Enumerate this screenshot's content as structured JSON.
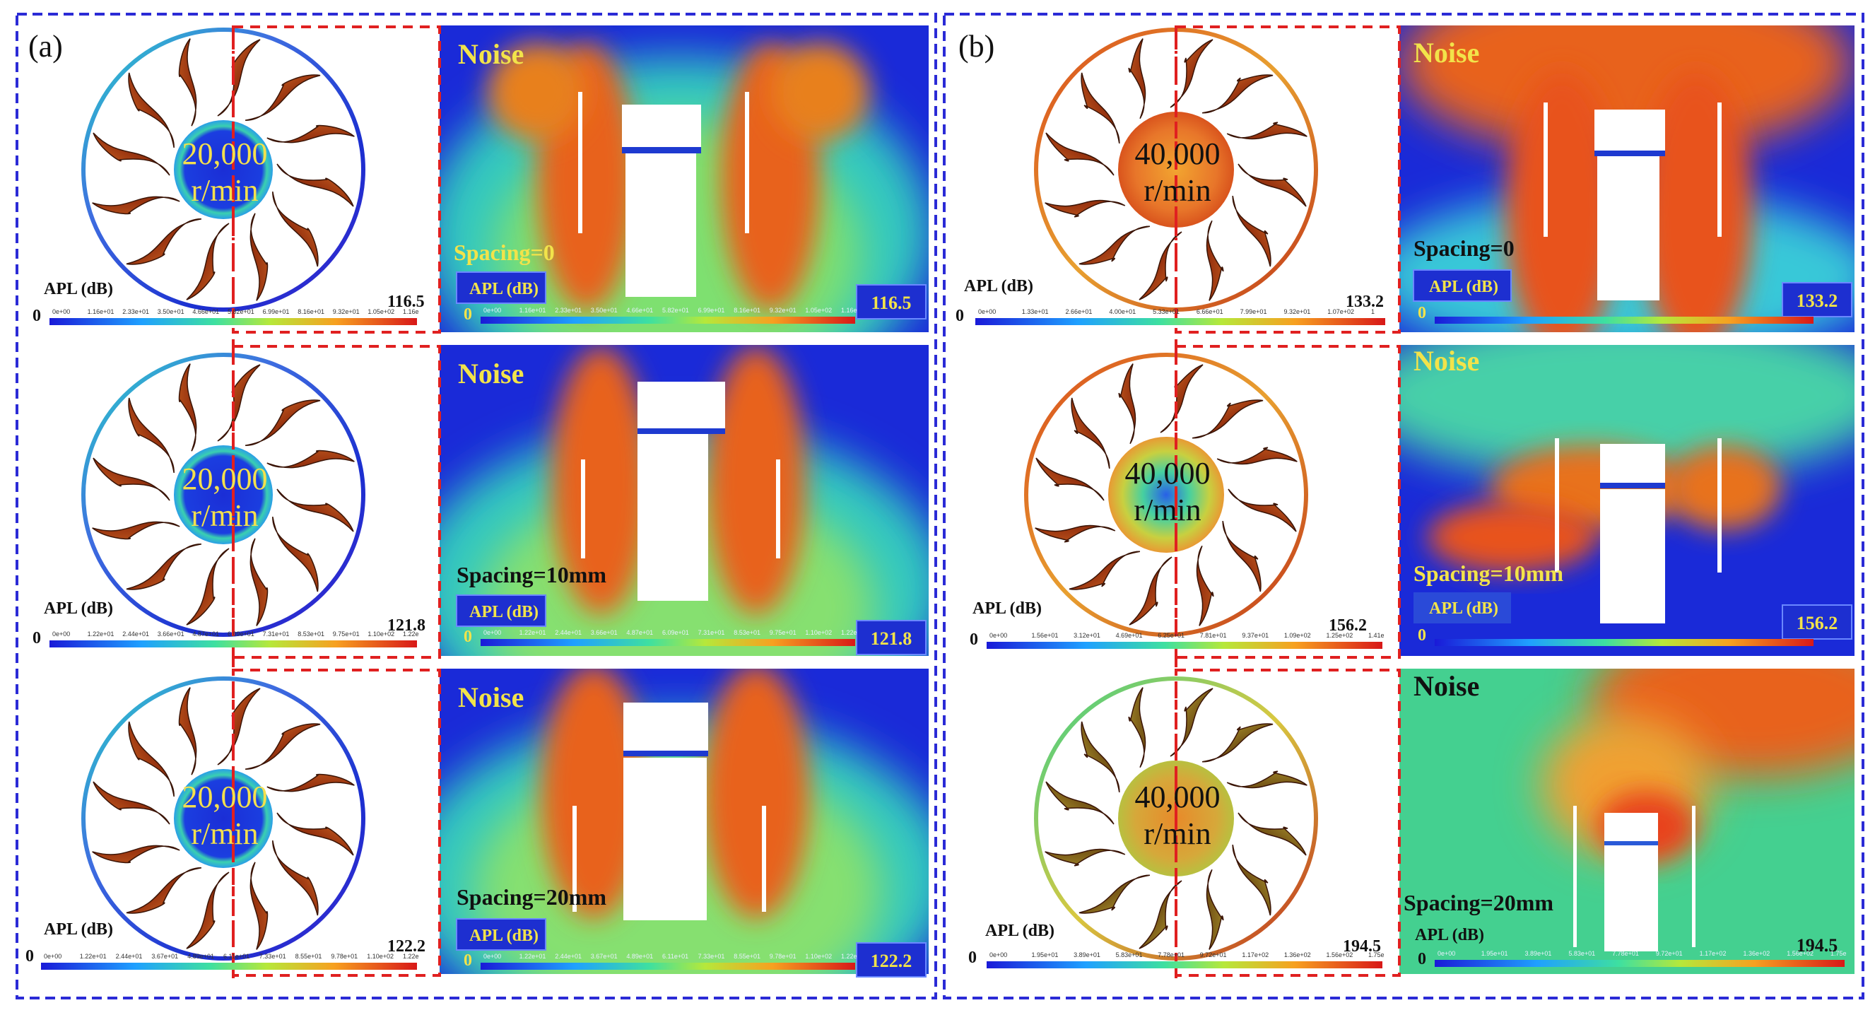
{
  "panels": [
    {
      "tag": "(a)",
      "speed_top": "20,000",
      "speed_unit": "r/min",
      "rows": [
        {
          "spacing": "Spacing=0",
          "max": "116.5",
          "ticks": [
            "0e+00",
            "1.16e+01",
            "2.33e+01",
            "3.50e+01",
            "4.66e+01",
            "5.82e+01",
            "6.99e+01",
            "8.16e+01",
            "9.32e+01",
            "1.05e+02",
            "1.16e"
          ]
        },
        {
          "spacing": "Spacing=10mm",
          "max": "121.8",
          "ticks": [
            "0e+00",
            "1.22e+01",
            "2.44e+01",
            "3.66e+01",
            "4.87e+01",
            "6.09e+01",
            "7.31e+01",
            "8.53e+01",
            "9.75e+01",
            "1.10e+02",
            "1.22e"
          ]
        },
        {
          "spacing": "Spacing=20mm",
          "max": "122.2",
          "ticks": [
            "0e+00",
            "1.22e+01",
            "2.44e+01",
            "3.67e+01",
            "4.89e+01",
            "6.11e+01",
            "7.33e+01",
            "8.55e+01",
            "9.78e+01",
            "1.10e+02",
            "1.22e"
          ]
        }
      ]
    },
    {
      "tag": "(b)",
      "speed_top": "40,000",
      "speed_unit": "r/min",
      "rows": [
        {
          "spacing": "Spacing=0",
          "max": "133.2",
          "ticks": [
            "0e+00",
            "1.33e+01",
            "2.66e+01",
            "4.00e+01",
            "5.33e+01",
            "6.66e+01",
            "7.99e+01",
            "9.32e+01",
            "1.07e+02",
            "1"
          ]
        },
        {
          "spacing": "Spacing=10mm",
          "max": "156.2",
          "ticks": [
            "0e+00",
            "1.56e+01",
            "3.12e+01",
            "4.69e+01",
            "6.25e+01",
            "7.81e+01",
            "9.37e+01",
            "1.09e+02",
            "1.25e+02",
            "1.41e"
          ]
        },
        {
          "spacing": "Spacing=20mm",
          "max": "194.5",
          "ticks": [
            "0e+00",
            "1.95e+01",
            "3.89e+01",
            "5.83e+01",
            "7.78e+01",
            "9.72e+01",
            "1.17e+02",
            "1.36e+02",
            "1.56e+02",
            "1.75e"
          ]
        }
      ]
    }
  ],
  "labels": {
    "noise": "Noise",
    "apl": "APL (dB)",
    "zero": "0"
  },
  "colors": {
    "frame_blue": "#2b2bd6",
    "dash_red": "#e02020",
    "noise_text": "#f2e34a",
    "field_low": "#1525d8",
    "field_mid": "#39d06a",
    "field_high": "#e8461c",
    "blade": "#8a2e12",
    "hub_text": "#f4e04d",
    "apl_box": "#1d2fd0"
  }
}
